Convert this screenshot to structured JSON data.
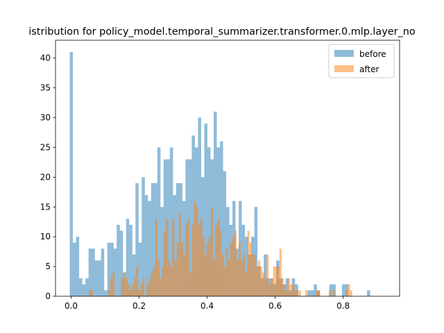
{
  "chart_data": {
    "type": "histogram",
    "title": "istribution for policy_model.temporal_summarizer.transformer.0.mlp.layer_no",
    "xlabel": "",
    "ylabel": "",
    "xlim": [
      -0.046,
      0.966
    ],
    "ylim": [
      0,
      43
    ],
    "xticks": [
      0.0,
      0.2,
      0.4,
      0.6,
      0.8
    ],
    "xtick_labels": [
      "0.0",
      "0.2",
      "0.4",
      "0.6",
      "0.8"
    ],
    "yticks": [
      0,
      5,
      10,
      15,
      20,
      25,
      30,
      35,
      40
    ],
    "ytick_labels": [
      "0",
      "5",
      "10",
      "15",
      "20",
      "25",
      "30",
      "35",
      "40"
    ],
    "grid": false,
    "legend_position": "top-right",
    "series": [
      {
        "name": "before",
        "color": "#1f77b4",
        "alpha": 0.5,
        "bin_start": -0.004,
        "bin_width": 0.0092,
        "counts": [
          41,
          9,
          10,
          3,
          2,
          3,
          8,
          8,
          6,
          6,
          8,
          1,
          9,
          9,
          8,
          12,
          11,
          4,
          13,
          12,
          7,
          19,
          9,
          20,
          17,
          16,
          19,
          19,
          25,
          15,
          23,
          23,
          25,
          17,
          19,
          19,
          16,
          23,
          23,
          27,
          25,
          30,
          20,
          29,
          25,
          23,
          31,
          25,
          26,
          21,
          15,
          12,
          16,
          8,
          16,
          12,
          10,
          7,
          10,
          15,
          5,
          3,
          7,
          3,
          3,
          2,
          6,
          3,
          2,
          3,
          1,
          3,
          2,
          0,
          0,
          0,
          1,
          1,
          2,
          1,
          0,
          0,
          0,
          2,
          2,
          0,
          0,
          2,
          2,
          0,
          0,
          0,
          0,
          0,
          0,
          1
        ]
      },
      {
        "name": "after",
        "color": "#ff7f0e",
        "alpha": 0.5,
        "bin_start": 0.052,
        "bin_width": 0.0063,
        "counts": [
          1,
          1,
          0,
          0,
          0,
          0,
          0,
          0,
          0,
          1,
          3,
          4,
          0,
          0,
          0,
          3,
          4,
          3,
          2,
          1,
          2,
          3,
          5,
          1,
          2,
          3,
          0,
          2,
          3,
          4,
          5,
          13,
          6,
          3,
          5,
          11,
          13,
          6,
          5,
          13,
          6,
          9,
          14,
          9,
          7,
          12,
          13,
          4,
          12,
          16,
          15,
          12,
          13,
          10,
          7,
          9,
          10,
          15,
          6,
          12,
          13,
          11,
          7,
          5,
          8,
          6,
          9,
          10,
          11,
          6,
          9,
          6,
          7,
          4,
          11,
          9,
          7,
          7,
          5,
          6,
          5,
          4,
          3,
          7,
          2,
          3,
          5,
          5,
          5,
          8,
          3,
          2,
          1,
          3,
          2,
          2,
          1,
          1,
          1,
          0,
          0,
          1,
          0,
          0,
          0,
          0,
          1,
          1,
          0,
          0,
          0,
          0,
          1,
          0,
          1,
          0,
          0,
          0,
          0,
          0,
          1,
          2,
          1
        ]
      }
    ]
  }
}
